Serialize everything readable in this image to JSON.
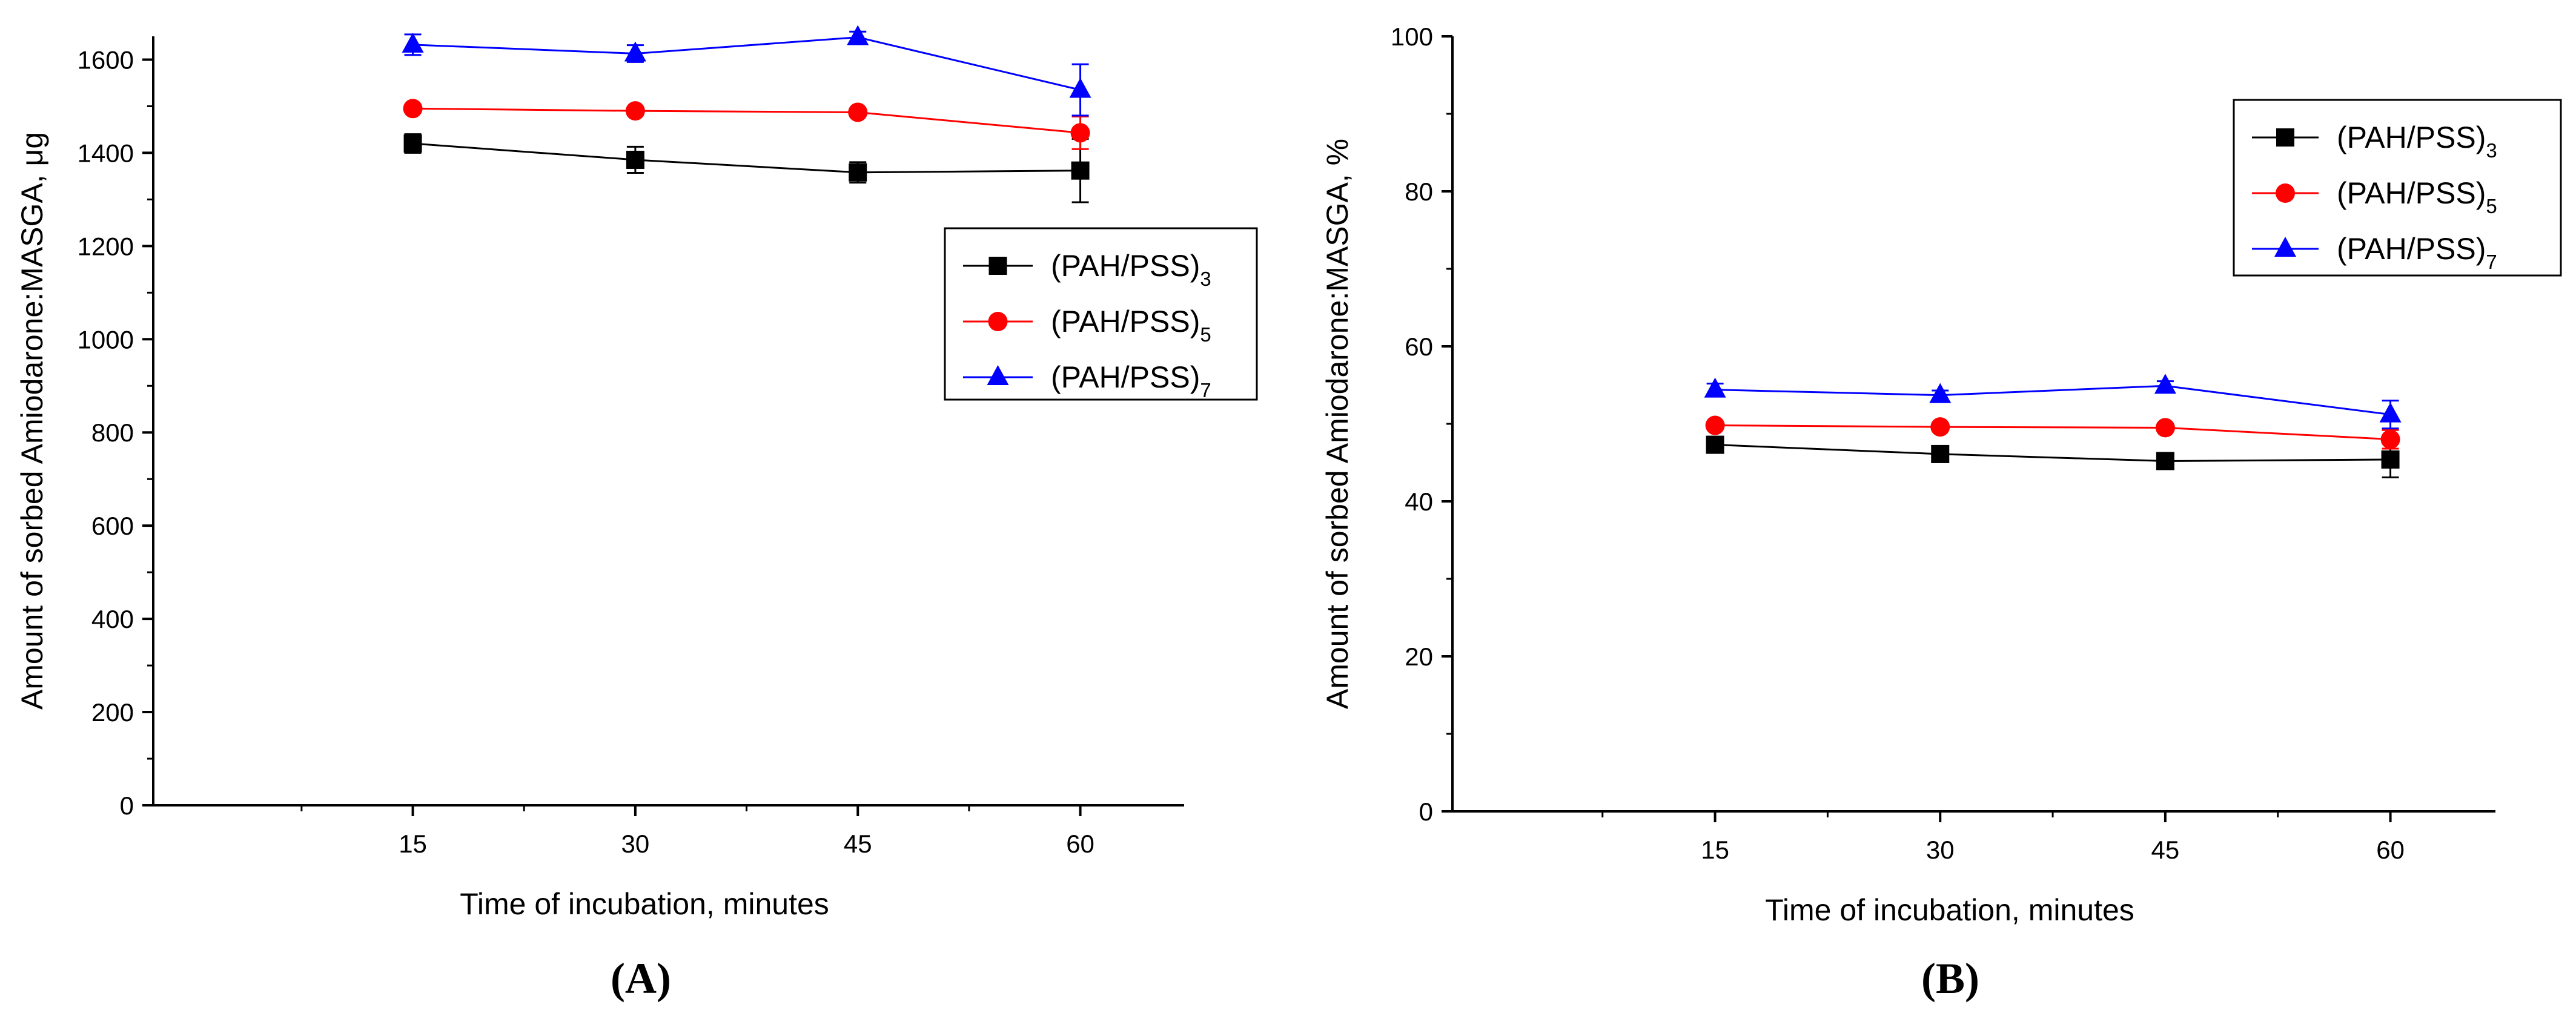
{
  "chart_data": [
    {
      "type": "line",
      "panel_label": "A",
      "xlabel": "Time of incubation, minutes",
      "ylabel": "Amount of sorbed Amiodarone:MASGA, μg",
      "xlim": [
        -2.5,
        67
      ],
      "ylim": [
        0,
        1650
      ],
      "xticks": [
        15,
        30,
        45,
        60
      ],
      "yticks": [
        0,
        200,
        400,
        600,
        800,
        1000,
        1200,
        1400,
        1600
      ],
      "legend_position": "right-middle",
      "series": [
        {
          "name": "(PAH/PSS)",
          "subscript": "3",
          "color": "#000000",
          "marker": "square",
          "x": [
            15,
            30,
            45,
            60
          ],
          "y": [
            1420,
            1385,
            1358,
            1362
          ],
          "err": [
            20,
            28,
            22,
            68
          ]
        },
        {
          "name": "(PAH/PSS)",
          "subscript": "5",
          "color": "#ff0000",
          "marker": "circle",
          "x": [
            15,
            30,
            45,
            60
          ],
          "y": [
            1495,
            1490,
            1487,
            1443
          ],
          "err": [
            8,
            8,
            8,
            35
          ]
        },
        {
          "name": "(PAH/PSS)",
          "subscript": "7",
          "color": "#0000ff",
          "marker": "triangle",
          "x": [
            15,
            30,
            45,
            60
          ],
          "y": [
            1632,
            1613,
            1648,
            1535
          ],
          "err": [
            22,
            18,
            12,
            55
          ]
        }
      ]
    },
    {
      "type": "line",
      "panel_label": "B",
      "xlabel": "Time of incubation, minutes",
      "ylabel": "Amount of sorbed Amiodarone:MASGA, %",
      "xlim": [
        -2.5,
        67
      ],
      "ylim": [
        0,
        100
      ],
      "xticks": [
        15,
        30,
        45,
        60
      ],
      "yticks": [
        0,
        20,
        40,
        60,
        80,
        100
      ],
      "legend_position": "top-right",
      "series": [
        {
          "name": "(PAH/PSS)",
          "subscript": "3",
          "color": "#000000",
          "marker": "square",
          "x": [
            15,
            30,
            45,
            60
          ],
          "y": [
            47.3,
            46.1,
            45.2,
            45.4
          ],
          "err": [
            0.7,
            0.8,
            0.6,
            2.3
          ]
        },
        {
          "name": "(PAH/PSS)",
          "subscript": "5",
          "color": "#ff0000",
          "marker": "circle",
          "x": [
            15,
            30,
            45,
            60
          ],
          "y": [
            49.8,
            49.6,
            49.5,
            48.0
          ],
          "err": [
            0.3,
            0.3,
            0.3,
            1.2
          ]
        },
        {
          "name": "(PAH/PSS)",
          "subscript": "7",
          "color": "#0000ff",
          "marker": "triangle",
          "x": [
            15,
            30,
            45,
            60
          ],
          "y": [
            54.4,
            53.7,
            54.9,
            51.2
          ],
          "err": [
            0.8,
            0.6,
            0.6,
            1.8
          ]
        }
      ]
    }
  ]
}
